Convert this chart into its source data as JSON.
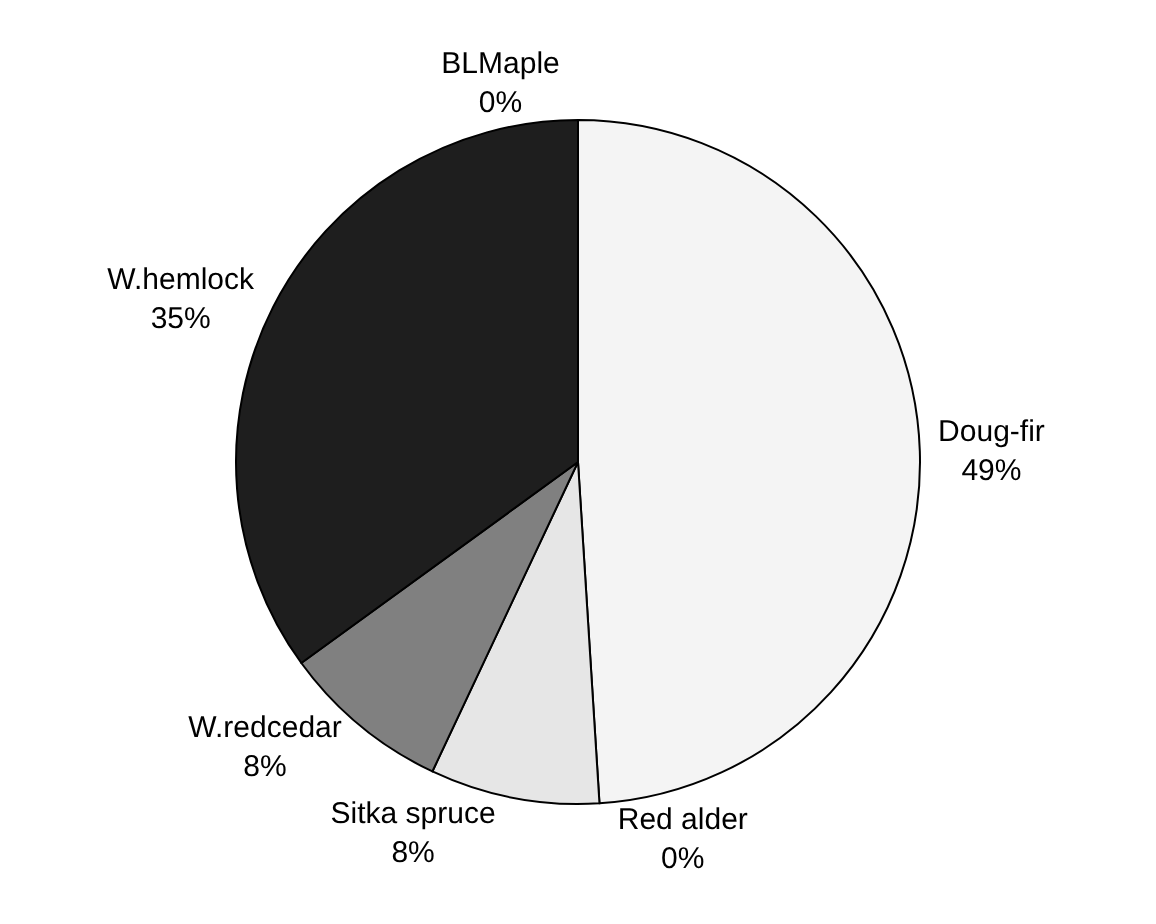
{
  "chart_data": {
    "type": "pie",
    "categories": [
      "Doug-fir",
      "Red alder",
      "Sitka spruce",
      "W.redcedar",
      "W.hemlock",
      "BLMaple"
    ],
    "values": [
      49,
      0,
      8,
      8,
      35,
      0
    ],
    "colors": [
      "#f4f4f4",
      "#ffffff",
      "#e6e6e6",
      "#808080",
      "#1e1e1e",
      "#ffffff"
    ],
    "value_labels": [
      "49%",
      "0%",
      "8%",
      "8%",
      "35%",
      "0%"
    ],
    "legend": false
  }
}
